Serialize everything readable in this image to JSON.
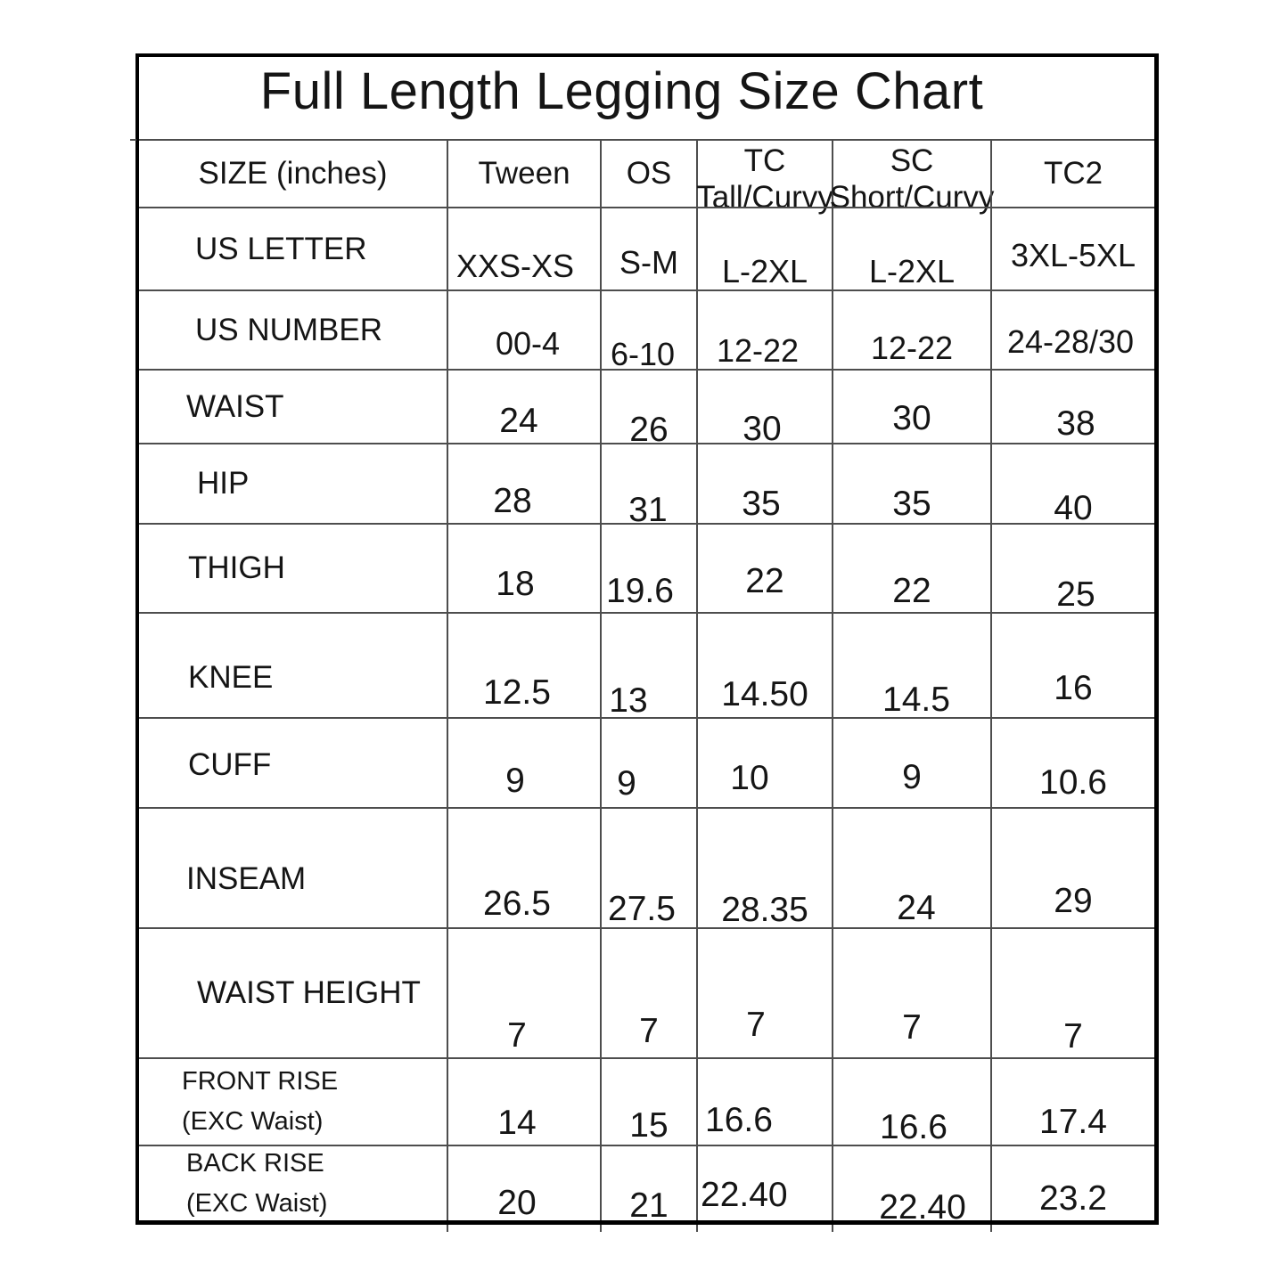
{
  "title": "Full Length Legging Size Chart",
  "chart_data": {
    "type": "table",
    "title": "Full Length Legging Size Chart",
    "columns": [
      "SIZE (inches)",
      "Tween",
      "OS",
      "TC\nTall/Curvy",
      "SC\nShort/Curvy",
      "TC2"
    ],
    "rows": [
      {
        "label": "US LETTER",
        "values": [
          "XXS-XS",
          "S-M",
          "L-2XL",
          "L-2XL",
          "3XL-5XL"
        ]
      },
      {
        "label": "US NUMBER",
        "values": [
          "00-4",
          "6-10",
          "12-22",
          "12-22",
          "24-28/30"
        ]
      },
      {
        "label": "WAIST",
        "values": [
          "24",
          "26",
          "30",
          "30",
          "38"
        ]
      },
      {
        "label": "HIP",
        "values": [
          "28",
          "31",
          "35",
          "35",
          "40"
        ]
      },
      {
        "label": "THIGH",
        "values": [
          "18",
          "19.6",
          "22",
          "22",
          "25"
        ]
      },
      {
        "label": "KNEE",
        "values": [
          "12.5",
          "13",
          "14.50",
          "14.5",
          "16"
        ]
      },
      {
        "label": "CUFF",
        "values": [
          "9",
          "9",
          "10",
          "9",
          "10.6"
        ]
      },
      {
        "label": "INSEAM",
        "values": [
          "26.5",
          "27.5",
          "28.35",
          "24",
          "29"
        ]
      },
      {
        "label": "WAIST HEIGHT",
        "values": [
          "7",
          "7",
          "7",
          "7",
          "7"
        ]
      },
      {
        "label": "FRONT RISE\n(EXC Waist)",
        "values": [
          "14",
          "15",
          "16.6",
          "16.6",
          "17.4"
        ]
      },
      {
        "label": "BACK RISE\n(EXC Waist)",
        "values": [
          "20",
          "21",
          "22.40",
          "22.40",
          "23.2"
        ]
      }
    ]
  }
}
